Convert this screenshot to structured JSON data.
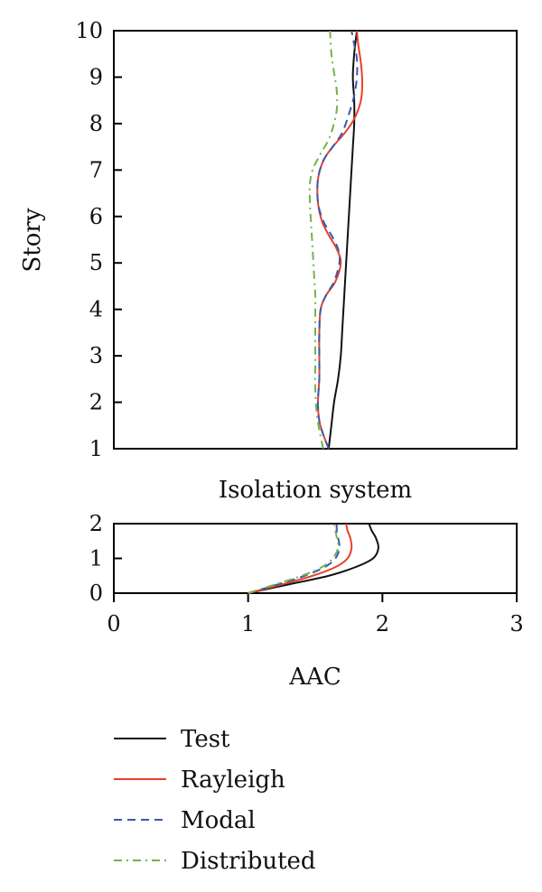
{
  "chart_data": [
    {
      "type": "line",
      "panel": "upper",
      "ylabel": "Story",
      "xlim": [
        0,
        3
      ],
      "ylim": [
        1,
        10
      ],
      "yticks": [
        1,
        2,
        3,
        4,
        5,
        6,
        7,
        8,
        9,
        10
      ],
      "series": [
        {
          "name": "Test",
          "color": "#111111",
          "dash": "solid",
          "points": [
            [
              1.6,
              1.0
            ],
            [
              1.62,
              1.5
            ],
            [
              1.64,
              2.0
            ],
            [
              1.67,
              2.5
            ],
            [
              1.69,
              3.0
            ],
            [
              1.7,
              3.5
            ],
            [
              1.71,
              4.0
            ],
            [
              1.72,
              4.5
            ],
            [
              1.73,
              5.0
            ],
            [
              1.74,
              5.5
            ],
            [
              1.75,
              6.0
            ],
            [
              1.76,
              6.5
            ],
            [
              1.77,
              7.0
            ],
            [
              1.78,
              7.5
            ],
            [
              1.79,
              8.0
            ],
            [
              1.79,
              8.5
            ],
            [
              1.78,
              9.0
            ],
            [
              1.79,
              9.5
            ],
            [
              1.81,
              10.0
            ]
          ]
        },
        {
          "name": "Rayleigh",
          "color": "#e8402a",
          "dash": "solid",
          "points": [
            [
              1.6,
              1.0
            ],
            [
              1.56,
              1.3
            ],
            [
              1.53,
              1.6
            ],
            [
              1.52,
              2.0
            ],
            [
              1.53,
              2.5
            ],
            [
              1.53,
              3.0
            ],
            [
              1.53,
              3.5
            ],
            [
              1.54,
              4.0
            ],
            [
              1.58,
              4.3
            ],
            [
              1.65,
              4.6
            ],
            [
              1.69,
              5.0
            ],
            [
              1.66,
              5.3
            ],
            [
              1.6,
              5.6
            ],
            [
              1.55,
              5.9
            ],
            [
              1.52,
              6.3
            ],
            [
              1.52,
              6.8
            ],
            [
              1.56,
              7.2
            ],
            [
              1.63,
              7.5
            ],
            [
              1.72,
              7.8
            ],
            [
              1.79,
              8.1
            ],
            [
              1.84,
              8.5
            ],
            [
              1.85,
              8.9
            ],
            [
              1.84,
              9.3
            ],
            [
              1.82,
              9.7
            ],
            [
              1.81,
              10.0
            ]
          ]
        },
        {
          "name": "Modal",
          "color": "#3a59b0",
          "dash": "dashed",
          "points": [
            [
              1.6,
              1.0
            ],
            [
              1.56,
              1.3
            ],
            [
              1.53,
              1.6
            ],
            [
              1.52,
              2.0
            ],
            [
              1.53,
              2.5
            ],
            [
              1.53,
              3.0
            ],
            [
              1.53,
              3.5
            ],
            [
              1.54,
              4.0
            ],
            [
              1.58,
              4.3
            ],
            [
              1.64,
              4.6
            ],
            [
              1.68,
              5.0
            ],
            [
              1.67,
              5.3
            ],
            [
              1.62,
              5.6
            ],
            [
              1.56,
              5.9
            ],
            [
              1.52,
              6.3
            ],
            [
              1.52,
              6.8
            ],
            [
              1.56,
              7.2
            ],
            [
              1.63,
              7.5
            ],
            [
              1.7,
              7.8
            ],
            [
              1.75,
              8.2
            ],
            [
              1.79,
              8.6
            ],
            [
              1.81,
              9.0
            ],
            [
              1.81,
              9.4
            ],
            [
              1.79,
              9.7
            ],
            [
              1.77,
              10.0
            ]
          ]
        },
        {
          "name": "Distributed",
          "color": "#74b24a",
          "dash": "dashdot",
          "points": [
            [
              1.56,
              1.0
            ],
            [
              1.53,
              1.4
            ],
            [
              1.51,
              1.8
            ],
            [
              1.5,
              2.3
            ],
            [
              1.5,
              2.8
            ],
            [
              1.5,
              3.3
            ],
            [
              1.5,
              3.8
            ],
            [
              1.5,
              4.3
            ],
            [
              1.49,
              4.8
            ],
            [
              1.48,
              5.3
            ],
            [
              1.47,
              5.8
            ],
            [
              1.46,
              6.3
            ],
            [
              1.46,
              6.7
            ],
            [
              1.48,
              7.0
            ],
            [
              1.53,
              7.3
            ],
            [
              1.59,
              7.6
            ],
            [
              1.63,
              7.9
            ],
            [
              1.66,
              8.3
            ],
            [
              1.66,
              8.7
            ],
            [
              1.64,
              9.1
            ],
            [
              1.62,
              9.5
            ],
            [
              1.61,
              10.0
            ]
          ]
        }
      ]
    },
    {
      "type": "line",
      "panel": "lower",
      "title": "Isolation system",
      "xlabel": "AAC",
      "xlim": [
        0,
        3
      ],
      "ylim": [
        0,
        2
      ],
      "xticks": [
        0,
        1,
        2,
        3
      ],
      "yticks": [
        0,
        1,
        2
      ],
      "series": [
        {
          "name": "Test",
          "color": "#111111",
          "dash": "solid",
          "points": [
            [
              1.0,
              0.0
            ],
            [
              1.3,
              0.25
            ],
            [
              1.6,
              0.5
            ],
            [
              1.8,
              0.75
            ],
            [
              1.93,
              1.0
            ],
            [
              1.97,
              1.3
            ],
            [
              1.95,
              1.6
            ],
            [
              1.92,
              1.8
            ],
            [
              1.9,
              2.0
            ]
          ]
        },
        {
          "name": "Rayleigh",
          "color": "#e8402a",
          "dash": "solid",
          "points": [
            [
              1.0,
              0.0
            ],
            [
              1.25,
              0.25
            ],
            [
              1.48,
              0.5
            ],
            [
              1.65,
              0.75
            ],
            [
              1.74,
              1.0
            ],
            [
              1.77,
              1.3
            ],
            [
              1.76,
              1.6
            ],
            [
              1.74,
              1.8
            ],
            [
              1.73,
              2.0
            ]
          ]
        },
        {
          "name": "Modal",
          "color": "#3a59b0",
          "dash": "dashed",
          "points": [
            [
              1.0,
              0.0
            ],
            [
              1.22,
              0.25
            ],
            [
              1.42,
              0.5
            ],
            [
              1.57,
              0.75
            ],
            [
              1.65,
              1.0
            ],
            [
              1.68,
              1.3
            ],
            [
              1.67,
              1.6
            ],
            [
              1.66,
              1.8
            ],
            [
              1.66,
              2.0
            ]
          ]
        },
        {
          "name": "Distributed",
          "color": "#74b24a",
          "dash": "dashdot",
          "points": [
            [
              1.0,
              0.0
            ],
            [
              1.2,
              0.25
            ],
            [
              1.4,
              0.5
            ],
            [
              1.55,
              0.75
            ],
            [
              1.63,
              1.0
            ],
            [
              1.67,
              1.3
            ],
            [
              1.66,
              1.6
            ],
            [
              1.65,
              1.8
            ],
            [
              1.64,
              2.0
            ]
          ]
        }
      ]
    }
  ],
  "legend": [
    {
      "label": "Test",
      "color": "#111111",
      "dash": "solid"
    },
    {
      "label": "Rayleigh",
      "color": "#e8402a",
      "dash": "solid"
    },
    {
      "label": "Modal",
      "color": "#3a59b0",
      "dash": "dashed"
    },
    {
      "label": "Distributed",
      "color": "#74b24a",
      "dash": "dashdot"
    }
  ]
}
